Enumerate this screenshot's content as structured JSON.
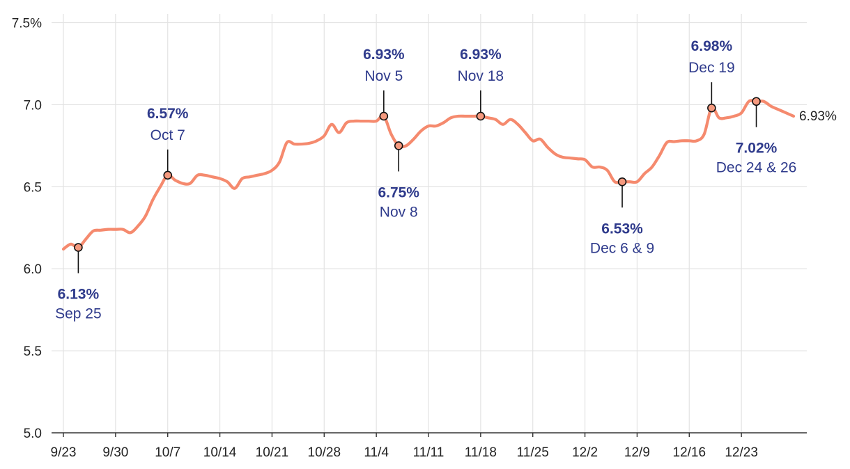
{
  "chart_data": {
    "type": "line",
    "title": "",
    "xlabel": "",
    "ylabel": "",
    "x_ticks": [
      "9/23",
      "9/30",
      "10/7",
      "10/14",
      "10/21",
      "10/28",
      "11/4",
      "11/11",
      "11/18",
      "11/25",
      "12/2",
      "12/9",
      "12/16",
      "12/23"
    ],
    "y_ticks": [
      "5.0",
      "5.5",
      "6.0",
      "6.5",
      "7.0",
      "7.5%"
    ],
    "ylim": [
      5.0,
      7.6
    ],
    "xlim": [
      "2024-09-23",
      "2024-12-30"
    ],
    "grid": true,
    "line_color": "#f58a6e",
    "annotation_color": "#2f3b8c",
    "series": [
      {
        "points": [
          [
            "2024-09-23",
            6.12
          ],
          [
            "2024-09-24",
            6.15
          ],
          [
            "2024-09-25",
            6.13
          ],
          [
            "2024-09-26",
            6.18
          ],
          [
            "2024-09-27",
            6.23
          ],
          [
            "2024-09-28",
            6.235
          ],
          [
            "2024-09-29",
            6.24
          ],
          [
            "2024-09-30",
            6.24
          ],
          [
            "2024-10-01",
            6.24
          ],
          [
            "2024-10-02",
            6.22
          ],
          [
            "2024-10-03",
            6.26
          ],
          [
            "2024-10-04",
            6.32
          ],
          [
            "2024-10-05",
            6.42
          ],
          [
            "2024-10-06",
            6.5
          ],
          [
            "2024-10-07",
            6.57
          ],
          [
            "2024-10-08",
            6.54
          ],
          [
            "2024-10-09",
            6.52
          ],
          [
            "2024-10-10",
            6.52
          ],
          [
            "2024-10-11",
            6.57
          ],
          [
            "2024-10-12",
            6.57
          ],
          [
            "2024-10-13",
            6.56
          ],
          [
            "2024-10-14",
            6.55
          ],
          [
            "2024-10-15",
            6.53
          ],
          [
            "2024-10-16",
            6.49
          ],
          [
            "2024-10-17",
            6.55
          ],
          [
            "2024-10-18",
            6.56
          ],
          [
            "2024-10-19",
            6.57
          ],
          [
            "2024-10-20",
            6.58
          ],
          [
            "2024-10-21",
            6.6
          ],
          [
            "2024-10-22",
            6.65
          ],
          [
            "2024-10-23",
            6.77
          ],
          [
            "2024-10-24",
            6.76
          ],
          [
            "2024-10-25",
            6.76
          ],
          [
            "2024-10-26",
            6.765
          ],
          [
            "2024-10-27",
            6.78
          ],
          [
            "2024-10-28",
            6.81
          ],
          [
            "2024-10-29",
            6.88
          ],
          [
            "2024-10-30",
            6.83
          ],
          [
            "2024-10-31",
            6.89
          ],
          [
            "2024-11-01",
            6.9
          ],
          [
            "2024-11-02",
            6.9
          ],
          [
            "2024-11-03",
            6.9
          ],
          [
            "2024-11-04",
            6.9
          ],
          [
            "2024-11-05",
            6.93
          ],
          [
            "2024-11-06",
            6.82
          ],
          [
            "2024-11-07",
            6.75
          ],
          [
            "2024-11-08",
            6.75
          ],
          [
            "2024-11-09",
            6.79
          ],
          [
            "2024-11-10",
            6.84
          ],
          [
            "2024-11-11",
            6.87
          ],
          [
            "2024-11-12",
            6.87
          ],
          [
            "2024-11-13",
            6.89
          ],
          [
            "2024-11-14",
            6.92
          ],
          [
            "2024-11-15",
            6.93
          ],
          [
            "2024-11-16",
            6.93
          ],
          [
            "2024-11-17",
            6.93
          ],
          [
            "2024-11-18",
            6.93
          ],
          [
            "2024-11-19",
            6.92
          ],
          [
            "2024-11-20",
            6.91
          ],
          [
            "2024-11-21",
            6.88
          ],
          [
            "2024-11-22",
            6.91
          ],
          [
            "2024-11-23",
            6.88
          ],
          [
            "2024-11-24",
            6.83
          ],
          [
            "2024-11-25",
            6.78
          ],
          [
            "2024-11-26",
            6.79
          ],
          [
            "2024-11-27",
            6.74
          ],
          [
            "2024-11-28",
            6.7
          ],
          [
            "2024-11-29",
            6.68
          ],
          [
            "2024-11-30",
            6.675
          ],
          [
            "2024-12-01",
            6.67
          ],
          [
            "2024-12-02",
            6.665
          ],
          [
            "2024-12-03",
            6.62
          ],
          [
            "2024-12-04",
            6.62
          ],
          [
            "2024-12-05",
            6.6
          ],
          [
            "2024-12-06",
            6.53
          ],
          [
            "2024-12-07",
            6.53
          ],
          [
            "2024-12-08",
            6.53
          ],
          [
            "2024-12-09",
            6.53
          ],
          [
            "2024-12-10",
            6.58
          ],
          [
            "2024-12-11",
            6.62
          ],
          [
            "2024-12-12",
            6.69
          ],
          [
            "2024-12-13",
            6.77
          ],
          [
            "2024-12-14",
            6.775
          ],
          [
            "2024-12-15",
            6.78
          ],
          [
            "2024-12-16",
            6.78
          ],
          [
            "2024-12-17",
            6.78
          ],
          [
            "2024-12-18",
            6.82
          ],
          [
            "2024-12-19",
            6.98
          ],
          [
            "2024-12-20",
            6.92
          ],
          [
            "2024-12-21",
            6.92
          ],
          [
            "2024-12-22",
            6.93
          ],
          [
            "2024-12-23",
            6.95
          ],
          [
            "2024-12-24",
            7.02
          ],
          [
            "2024-12-25",
            7.02
          ],
          [
            "2024-12-26",
            7.02
          ],
          [
            "2024-12-27",
            6.99
          ],
          [
            "2024-12-28",
            6.97
          ],
          [
            "2024-12-29",
            6.95
          ],
          [
            "2024-12-30",
            6.93
          ]
        ]
      }
    ],
    "end_label": "6.93%",
    "annotations": [
      {
        "value": "6.13%",
        "date": "Sep 25",
        "x": "2024-09-25",
        "y": 6.13,
        "position": "below"
      },
      {
        "value": "6.57%",
        "date": "Oct 7",
        "x": "2024-10-07",
        "y": 6.57,
        "position": "above"
      },
      {
        "value": "6.93%",
        "date": "Nov 5",
        "x": "2024-11-05",
        "y": 6.93,
        "position": "above"
      },
      {
        "value": "6.75%",
        "date": "Nov 8",
        "x": "2024-11-07",
        "y": 6.75,
        "position": "below"
      },
      {
        "value": "6.93%",
        "date": "Nov 18",
        "x": "2024-11-18",
        "y": 6.93,
        "position": "above"
      },
      {
        "value": "6.53%",
        "date": "Dec 6 & 9",
        "x": "2024-12-07",
        "y": 6.53,
        "position": "below"
      },
      {
        "value": "6.98%",
        "date": "Dec 19",
        "x": "2024-12-19",
        "y": 6.98,
        "position": "above"
      },
      {
        "value": "7.02%",
        "date": "Dec 24 & 26",
        "x": "2024-12-25",
        "y": 7.02,
        "position": "below"
      }
    ]
  }
}
